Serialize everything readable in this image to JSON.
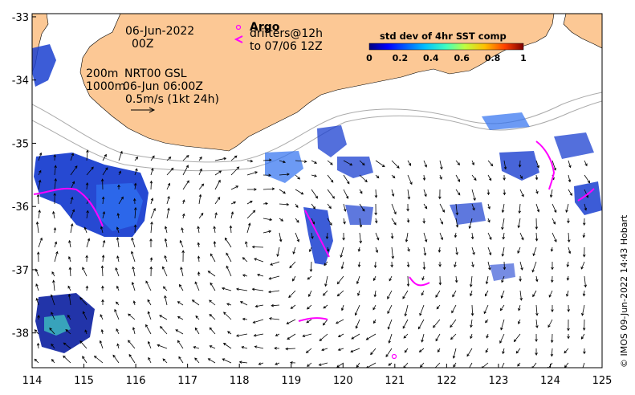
{
  "chart_data": {
    "type": "map",
    "x_ticks": [
      "114",
      "115",
      "116",
      "117",
      "118",
      "119",
      "120",
      "121",
      "122",
      "123",
      "124",
      "125"
    ],
    "y_ticks": [
      "-33",
      "-34",
      "-35",
      "-36",
      "-37",
      "-38"
    ],
    "xlim": [
      114,
      125
    ],
    "ylim": [
      -38.55,
      -32.95
    ],
    "annotations": {
      "date": "06-Jun-2022",
      "hour": "00Z",
      "depth_200": "200m",
      "depth_1000": "1000m",
      "product": "NRT00 GSL",
      "product_time": "06-Jun 06:00Z",
      "scale_label": "0.5m/s (1kt 24h)"
    },
    "legend": {
      "argo_label": "Argo",
      "drifters_label": "drifters@12h",
      "drifters_label2": "to 07/06 12Z"
    },
    "colorbar": {
      "title": "std dev of 4hr SST comp",
      "ticks": [
        "0",
        "0.2",
        "0.4",
        "0.6",
        "0.8",
        "1"
      ],
      "colors": [
        "#00007f",
        "#0000ff",
        "#007fff",
        "#00ffff",
        "#7fff7f",
        "#ffff00",
        "#ff7f00",
        "#ff0000",
        "#7f0000"
      ]
    },
    "credit": "© IMOS 09-Jun-2022 14:43 Hobart",
    "colors": {
      "land": "#fcc895",
      "argo_marker": "#ff00ff",
      "drifter": "#ff00ff"
    }
  }
}
